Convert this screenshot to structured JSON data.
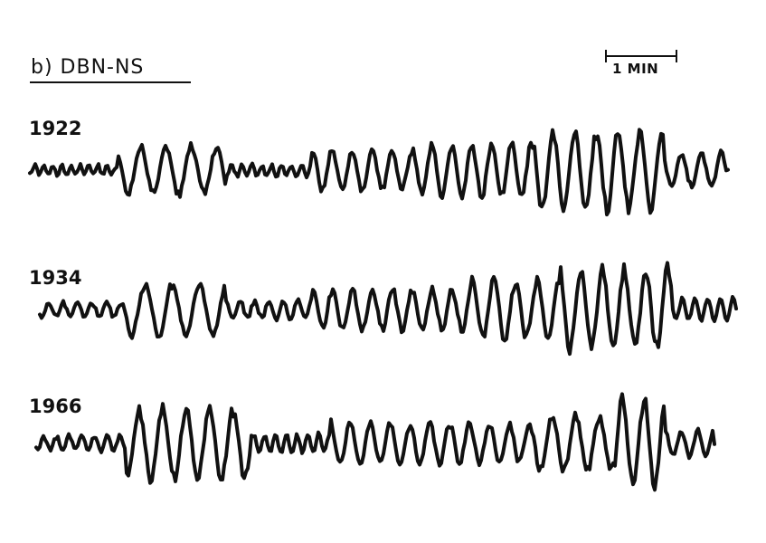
{
  "panel_title": "b) DBN-NS",
  "scale_bar_label": "1 MIN",
  "traces": [
    {
      "label": "1922"
    },
    {
      "label": "1934"
    },
    {
      "label": "1966"
    }
  ],
  "colors": {
    "ink": "#111111",
    "background": "#ffffff"
  }
}
